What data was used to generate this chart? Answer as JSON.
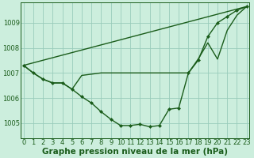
{
  "background_color": "#cceedd",
  "plot_bg_color": "#cceedd",
  "line_color": "#1a5c1a",
  "grid_color": "#99ccbb",
  "xlabel": "Graphe pression niveau de la mer (hPa)",
  "xlabel_fontsize": 7.5,
  "ylim": [
    1004.4,
    1009.8
  ],
  "xlim": [
    -0.3,
    23.3
  ],
  "yticks": [
    1005,
    1006,
    1007,
    1008,
    1009
  ],
  "xticks": [
    0,
    1,
    2,
    3,
    4,
    5,
    6,
    7,
    8,
    9,
    10,
    11,
    12,
    13,
    14,
    15,
    16,
    17,
    18,
    19,
    20,
    21,
    22,
    23
  ],
  "line1_x": [
    0,
    1,
    2,
    3,
    4,
    5,
    6,
    7,
    8,
    9,
    10,
    11,
    12,
    13,
    14,
    15,
    16,
    17,
    18,
    19,
    20,
    21,
    22,
    23
  ],
  "line1_y": [
    1007.3,
    1007.0,
    1006.75,
    1006.6,
    1006.6,
    1006.35,
    1006.05,
    1005.8,
    1005.45,
    1005.15,
    1004.9,
    1004.9,
    1004.95,
    1004.85,
    1004.9,
    1005.55,
    1005.6,
    1007.0,
    1007.5,
    1008.45,
    1009.0,
    1009.25,
    1009.5,
    1009.65
  ],
  "line2_x": [
    0,
    23
  ],
  "line2_y": [
    1007.3,
    1009.65
  ],
  "line3_x": [
    0,
    1,
    2,
    3,
    4,
    5,
    6,
    7,
    8,
    9,
    10,
    11,
    12,
    13,
    14,
    15,
    16,
    17,
    18,
    19,
    20,
    21,
    22,
    23
  ],
  "line3_y": [
    1007.3,
    1007.0,
    1006.75,
    1006.6,
    1006.6,
    1006.35,
    1006.9,
    1006.95,
    1007.0,
    1007.0,
    1007.0,
    1007.0,
    1007.0,
    1007.0,
    1007.0,
    1007.0,
    1007.0,
    1007.0,
    1007.55,
    1008.2,
    1007.55,
    1008.7,
    1009.3,
    1009.65
  ],
  "marker_size": 2.5,
  "line_width": 1.0,
  "tick_fontsize": 6
}
